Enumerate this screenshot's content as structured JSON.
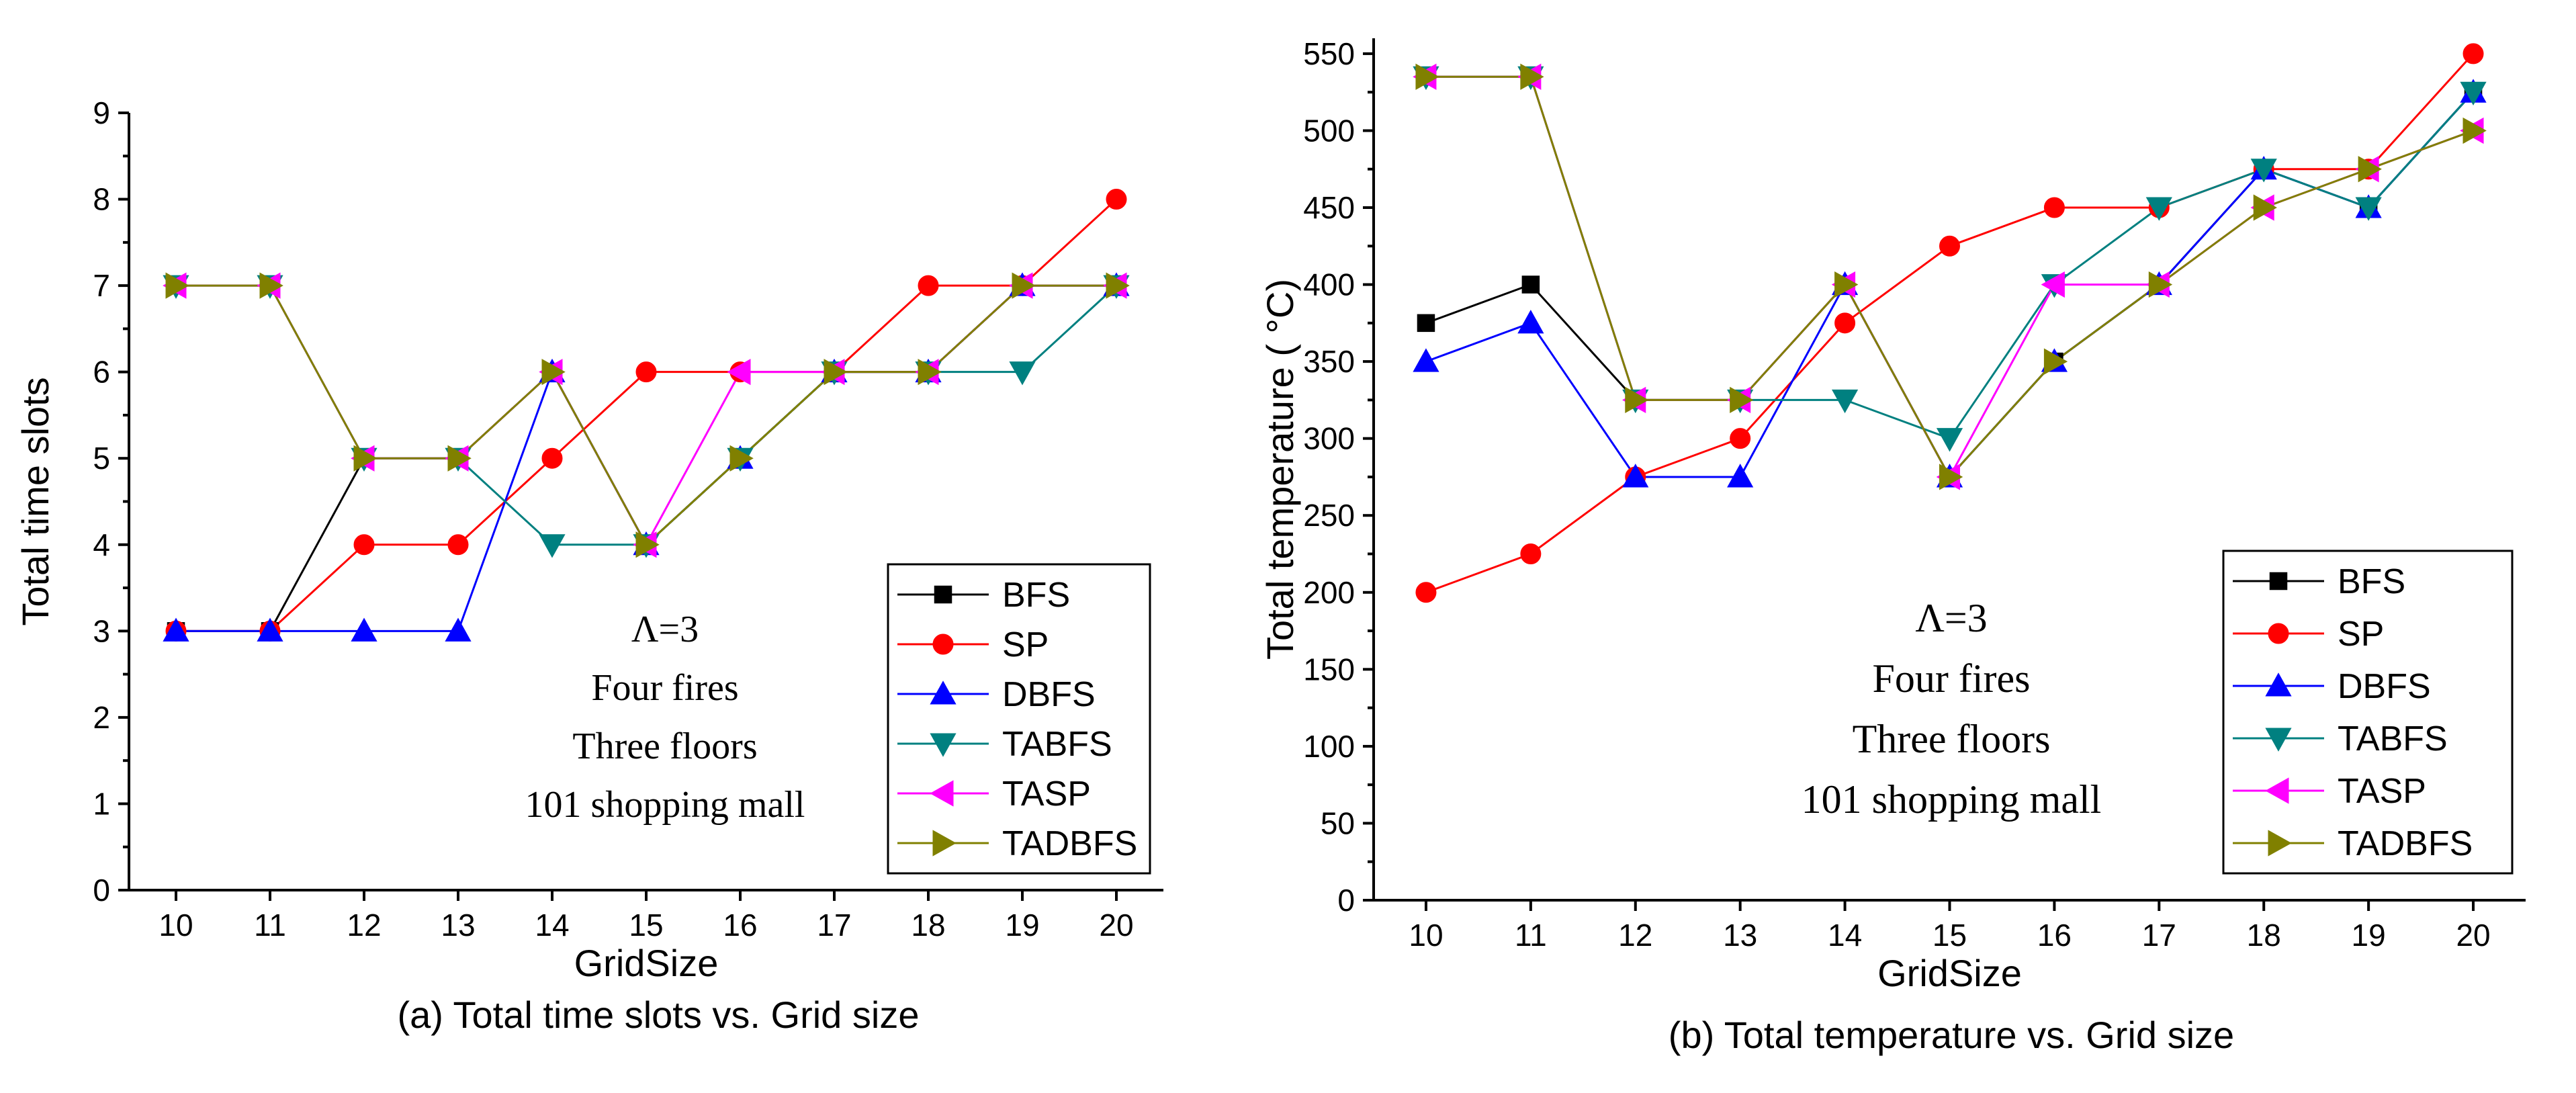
{
  "chart_data": [
    {
      "type": "line",
      "title": "",
      "caption": "(a) Total time slots vs. Grid size",
      "xlabel": "GridSize",
      "ylabel": "Total time slots",
      "x": [
        10,
        11,
        12,
        13,
        14,
        15,
        16,
        17,
        18,
        19,
        20
      ],
      "xlim": [
        9.5,
        20.5
      ],
      "ylim": [
        0,
        9
      ],
      "yticks": [
        0,
        1,
        2,
        3,
        4,
        5,
        6,
        7,
        8,
        9
      ],
      "annotations": [
        "Λ=3",
        "Four fires",
        "Three floors",
        "101 shopping mall"
      ],
      "legend_position": "bottom-right",
      "series": [
        {
          "name": "BFS",
          "color": "#000000",
          "marker": "square",
          "values": [
            3,
            3,
            5,
            5,
            6,
            4,
            5,
            6,
            6,
            7,
            7
          ]
        },
        {
          "name": "SP",
          "color": "#ff0000",
          "marker": "circle",
          "values": [
            3,
            3,
            4,
            4,
            5,
            6,
            6,
            6,
            7,
            7,
            8
          ]
        },
        {
          "name": "DBFS",
          "color": "#0000ff",
          "marker": "triangle-up",
          "values": [
            3,
            3,
            3,
            3,
            6,
            4,
            5,
            6,
            6,
            7,
            7
          ]
        },
        {
          "name": "TABFS",
          "color": "#008080",
          "marker": "triangle-down",
          "values": [
            7,
            7,
            5,
            5,
            4,
            4,
            5,
            6,
            6,
            6,
            7
          ]
        },
        {
          "name": "TASP",
          "color": "#ff00ff",
          "marker": "triangle-left",
          "values": [
            7,
            7,
            5,
            5,
            6,
            4,
            6,
            6,
            6,
            7,
            7
          ]
        },
        {
          "name": "TADBFS",
          "color": "#808000",
          "marker": "triangle-right",
          "values": [
            7,
            7,
            5,
            5,
            6,
            4,
            5,
            6,
            6,
            7,
            7
          ]
        }
      ]
    },
    {
      "type": "line",
      "title": "",
      "caption": "(b) Total temperature vs. Grid size",
      "xlabel": "GridSize",
      "ylabel": "Total temperature ( °C)",
      "x": [
        10,
        11,
        12,
        13,
        14,
        15,
        16,
        17,
        18,
        19,
        20
      ],
      "xlim": [
        9.5,
        20.5
      ],
      "ylim": [
        0,
        560
      ],
      "yticks": [
        0,
        50,
        100,
        150,
        200,
        250,
        300,
        350,
        400,
        450,
        500,
        550
      ],
      "annotations": [
        "Λ=3",
        "Four fires",
        "Three floors",
        "101 shopping mall"
      ],
      "legend_position": "bottom-right",
      "series": [
        {
          "name": "BFS",
          "color": "#000000",
          "marker": "square",
          "values": [
            375,
            400,
            325,
            325,
            400,
            275,
            350,
            400,
            475,
            450,
            525
          ]
        },
        {
          "name": "SP",
          "color": "#ff0000",
          "marker": "circle",
          "values": [
            200,
            225,
            275,
            300,
            375,
            425,
            450,
            450,
            475,
            475,
            550
          ]
        },
        {
          "name": "DBFS",
          "color": "#0000ff",
          "marker": "triangle-up",
          "values": [
            350,
            375,
            275,
            275,
            400,
            275,
            350,
            400,
            475,
            450,
            525
          ]
        },
        {
          "name": "TABFS",
          "color": "#008080",
          "marker": "triangle-down",
          "values": [
            535,
            535,
            325,
            325,
            325,
            300,
            400,
            450,
            475,
            450,
            525
          ]
        },
        {
          "name": "TASP",
          "color": "#ff00ff",
          "marker": "triangle-left",
          "values": [
            535,
            535,
            325,
            325,
            400,
            275,
            400,
            400,
            450,
            475,
            500
          ]
        },
        {
          "name": "TADBFS",
          "color": "#808000",
          "marker": "triangle-right",
          "values": [
            535,
            535,
            325,
            325,
            400,
            275,
            350,
            400,
            450,
            475,
            500
          ]
        }
      ]
    }
  ]
}
